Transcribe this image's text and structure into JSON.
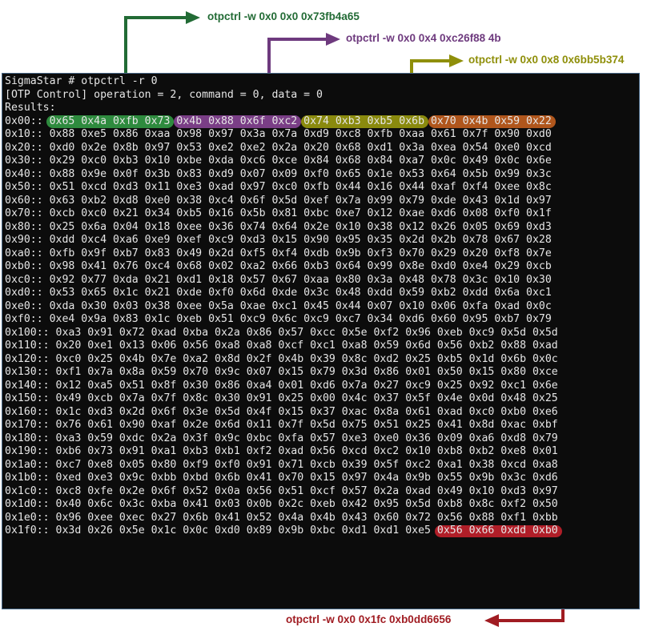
{
  "terminal": {
    "prompt_line": "SigmaStar # otpctrl -r 0",
    "info_line": "[OTP Control] operation = 2, command = 0, data = 0",
    "results_label": "Results:",
    "rows": [
      {
        "addr": "0x00::",
        "bytes": [
          "0x65",
          "0x4a",
          "0xfb",
          "0x73",
          "0x4b",
          "0x88",
          "0x6f",
          "0xc2",
          "0x74",
          "0xb3",
          "0xb5",
          "0x6b",
          "0x70",
          "0x4b",
          "0x59",
          "0x22"
        ]
      },
      {
        "addr": "0x10::",
        "bytes": [
          "0x88",
          "0xe5",
          "0x86",
          "0xaa",
          "0x98",
          "0x97",
          "0x3a",
          "0x7a",
          "0xd9",
          "0xc8",
          "0xfb",
          "0xaa",
          "0x61",
          "0x7f",
          "0x90",
          "0xd0"
        ]
      },
      {
        "addr": "0x20::",
        "bytes": [
          "0xd0",
          "0x2e",
          "0x8b",
          "0x97",
          "0x53",
          "0xe2",
          "0xe2",
          "0x2a",
          "0x20",
          "0x68",
          "0xd1",
          "0x3a",
          "0xea",
          "0x54",
          "0xe0",
          "0xcd"
        ]
      },
      {
        "addr": "0x30::",
        "bytes": [
          "0x29",
          "0xc0",
          "0xb3",
          "0x10",
          "0xbe",
          "0xda",
          "0xc6",
          "0xce",
          "0x84",
          "0x68",
          "0x84",
          "0xa7",
          "0x0c",
          "0x49",
          "0x0c",
          "0x6e"
        ]
      },
      {
        "addr": "0x40::",
        "bytes": [
          "0x88",
          "0x9e",
          "0x0f",
          "0x3b",
          "0x83",
          "0xd9",
          "0x07",
          "0x09",
          "0xf0",
          "0x65",
          "0x1e",
          "0x53",
          "0x64",
          "0x5b",
          "0x99",
          "0x3c"
        ]
      },
      {
        "addr": "0x50::",
        "bytes": [
          "0x51",
          "0xcd",
          "0xd3",
          "0x11",
          "0xe3",
          "0xad",
          "0x97",
          "0xc0",
          "0xfb",
          "0x44",
          "0x16",
          "0x44",
          "0xaf",
          "0xf4",
          "0xee",
          "0x8c"
        ]
      },
      {
        "addr": "0x60::",
        "bytes": [
          "0x63",
          "0xb2",
          "0xd8",
          "0xe0",
          "0x38",
          "0xc4",
          "0x6f",
          "0x5d",
          "0xef",
          "0x7a",
          "0x99",
          "0x79",
          "0xde",
          "0x43",
          "0x1d",
          "0x97"
        ]
      },
      {
        "addr": "0x70::",
        "bytes": [
          "0xcb",
          "0xc0",
          "0x21",
          "0x34",
          "0xb5",
          "0x16",
          "0x5b",
          "0x81",
          "0xbc",
          "0xe7",
          "0x12",
          "0xae",
          "0xd6",
          "0x08",
          "0xf0",
          "0x1f"
        ]
      },
      {
        "addr": "0x80::",
        "bytes": [
          "0x25",
          "0x6a",
          "0x04",
          "0x18",
          "0xee",
          "0x36",
          "0x74",
          "0x64",
          "0x2e",
          "0x10",
          "0x38",
          "0x12",
          "0x26",
          "0x05",
          "0x69",
          "0xd3"
        ]
      },
      {
        "addr": "0x90::",
        "bytes": [
          "0xdd",
          "0xc4",
          "0xa6",
          "0xe9",
          "0xef",
          "0xc9",
          "0xd3",
          "0x15",
          "0x90",
          "0x95",
          "0x35",
          "0x2d",
          "0x2b",
          "0x78",
          "0x67",
          "0x28"
        ]
      },
      {
        "addr": "0xa0::",
        "bytes": [
          "0xfb",
          "0x9f",
          "0xb7",
          "0x83",
          "0x49",
          "0x2d",
          "0xf5",
          "0xf4",
          "0xdb",
          "0x9b",
          "0xf3",
          "0x70",
          "0x29",
          "0x20",
          "0xf8",
          "0x7e"
        ]
      },
      {
        "addr": "0xb0::",
        "bytes": [
          "0x98",
          "0x41",
          "0x76",
          "0xc4",
          "0x68",
          "0x02",
          "0xa2",
          "0x66",
          "0xb3",
          "0x64",
          "0x99",
          "0x8e",
          "0xd0",
          "0xe4",
          "0x29",
          "0xcb"
        ]
      },
      {
        "addr": "0xc0::",
        "bytes": [
          "0x92",
          "0x77",
          "0xda",
          "0x21",
          "0xd1",
          "0x18",
          "0x57",
          "0x67",
          "0xaa",
          "0x80",
          "0x3a",
          "0x48",
          "0x78",
          "0x3c",
          "0x10",
          "0x30"
        ]
      },
      {
        "addr": "0xd0::",
        "bytes": [
          "0x53",
          "0x65",
          "0x1c",
          "0x21",
          "0xde",
          "0xf0",
          "0x6d",
          "0xde",
          "0x3c",
          "0x48",
          "0xdd",
          "0x59",
          "0xb2",
          "0xdd",
          "0x6a",
          "0xc1"
        ]
      },
      {
        "addr": "0xe0::",
        "bytes": [
          "0xda",
          "0x30",
          "0x03",
          "0x38",
          "0xee",
          "0x5a",
          "0xae",
          "0xc1",
          "0x45",
          "0x44",
          "0x07",
          "0x10",
          "0x06",
          "0xfa",
          "0xad",
          "0x0c"
        ]
      },
      {
        "addr": "0xf0::",
        "bytes": [
          "0xe4",
          "0x9a",
          "0x83",
          "0x1c",
          "0xeb",
          "0x51",
          "0xc9",
          "0x6c",
          "0xc9",
          "0xc7",
          "0x34",
          "0xd6",
          "0x60",
          "0x95",
          "0xb7",
          "0x79"
        ]
      },
      {
        "addr": "0x100::",
        "bytes": [
          "0xa3",
          "0x91",
          "0x72",
          "0xad",
          "0xba",
          "0x2a",
          "0x86",
          "0x57",
          "0xcc",
          "0x5e",
          "0xf2",
          "0x96",
          "0xeb",
          "0xc9",
          "0x5d",
          "0x5d"
        ]
      },
      {
        "addr": "0x110::",
        "bytes": [
          "0x20",
          "0xe1",
          "0x13",
          "0x06",
          "0x56",
          "0xa8",
          "0xa8",
          "0xcf",
          "0xc1",
          "0xa8",
          "0x59",
          "0x6d",
          "0x56",
          "0xb2",
          "0x88",
          "0xad"
        ]
      },
      {
        "addr": "0x120::",
        "bytes": [
          "0xc0",
          "0x25",
          "0x4b",
          "0x7e",
          "0xa2",
          "0x8d",
          "0x2f",
          "0x4b",
          "0x39",
          "0x8c",
          "0xd2",
          "0x25",
          "0xb5",
          "0x1d",
          "0x6b",
          "0x0c"
        ]
      },
      {
        "addr": "0x130::",
        "bytes": [
          "0xf1",
          "0x7a",
          "0x8a",
          "0x59",
          "0x70",
          "0x9c",
          "0x07",
          "0x15",
          "0x79",
          "0x3d",
          "0x86",
          "0x01",
          "0x50",
          "0x15",
          "0x80",
          "0xce"
        ]
      },
      {
        "addr": "0x140::",
        "bytes": [
          "0x12",
          "0xa5",
          "0x51",
          "0x8f",
          "0x30",
          "0x86",
          "0xa4",
          "0x01",
          "0xd6",
          "0x7a",
          "0x27",
          "0xc9",
          "0x25",
          "0x92",
          "0xc1",
          "0x6e"
        ]
      },
      {
        "addr": "0x150::",
        "bytes": [
          "0x49",
          "0xcb",
          "0x7a",
          "0x7f",
          "0x8c",
          "0x30",
          "0x91",
          "0x25",
          "0x00",
          "0x4c",
          "0x37",
          "0x5f",
          "0x4e",
          "0x0d",
          "0x48",
          "0x25"
        ]
      },
      {
        "addr": "0x160::",
        "bytes": [
          "0x1c",
          "0xd3",
          "0x2d",
          "0x6f",
          "0x3e",
          "0x5d",
          "0x4f",
          "0x15",
          "0x37",
          "0xac",
          "0x8a",
          "0x61",
          "0xad",
          "0xc0",
          "0xb0",
          "0xe6"
        ]
      },
      {
        "addr": "0x170::",
        "bytes": [
          "0x76",
          "0x61",
          "0x90",
          "0xaf",
          "0x2e",
          "0x6d",
          "0x11",
          "0x7f",
          "0x5d",
          "0x75",
          "0x51",
          "0x25",
          "0x41",
          "0x8d",
          "0xac",
          "0xbf"
        ]
      },
      {
        "addr": "0x180::",
        "bytes": [
          "0xa3",
          "0x59",
          "0xdc",
          "0x2a",
          "0x3f",
          "0x9c",
          "0xbc",
          "0xfa",
          "0x57",
          "0xe3",
          "0xe0",
          "0x36",
          "0x09",
          "0xa6",
          "0xd8",
          "0x79"
        ]
      },
      {
        "addr": "0x190::",
        "bytes": [
          "0xb6",
          "0x73",
          "0x91",
          "0xa1",
          "0xb3",
          "0xb1",
          "0xf2",
          "0xad",
          "0x56",
          "0xcd",
          "0xc2",
          "0x10",
          "0xb8",
          "0xb2",
          "0xe8",
          "0x01"
        ]
      },
      {
        "addr": "0x1a0::",
        "bytes": [
          "0xc7",
          "0xe8",
          "0x05",
          "0x80",
          "0xf9",
          "0xf0",
          "0x91",
          "0x71",
          "0xcb",
          "0x39",
          "0x5f",
          "0xc2",
          "0xa1",
          "0x38",
          "0xcd",
          "0xa8"
        ]
      },
      {
        "addr": "0x1b0::",
        "bytes": [
          "0xed",
          "0xe3",
          "0x9c",
          "0xbb",
          "0xbd",
          "0x6b",
          "0x41",
          "0x70",
          "0x15",
          "0x97",
          "0x4a",
          "0x9b",
          "0x55",
          "0x9b",
          "0x3c",
          "0xd6"
        ]
      },
      {
        "addr": "0x1c0::",
        "bytes": [
          "0xc8",
          "0xfe",
          "0x2e",
          "0x6f",
          "0x52",
          "0x0a",
          "0x56",
          "0x51",
          "0xcf",
          "0x57",
          "0x2a",
          "0xad",
          "0x49",
          "0x10",
          "0xd3",
          "0x97"
        ]
      },
      {
        "addr": "0x1d0::",
        "bytes": [
          "0x40",
          "0x6c",
          "0x3c",
          "0xba",
          "0x41",
          "0x03",
          "0x0b",
          "0x2c",
          "0xeb",
          "0x42",
          "0x95",
          "0x5d",
          "0xb8",
          "0x8c",
          "0xf2",
          "0x50"
        ]
      },
      {
        "addr": "0x1e0::",
        "bytes": [
          "0x96",
          "0xee",
          "0xec",
          "0x27",
          "0x6b",
          "0x41",
          "0x52",
          "0x4a",
          "0x4b",
          "0x43",
          "0x60",
          "0x72",
          "0x56",
          "0x88",
          "0xf1",
          "0xbb"
        ]
      },
      {
        "addr": "0x1f0::",
        "bytes": [
          "0x3d",
          "0x26",
          "0x5e",
          "0x1c",
          "0x0c",
          "0xd0",
          "0x89",
          "0x9b",
          "0xbc",
          "0xd1",
          "0xd1",
          "0xe5",
          "0x56",
          "0x66",
          "0xdd",
          "0xb0"
        ]
      }
    ]
  },
  "highlights": [
    {
      "row": 0,
      "start": 0,
      "count": 4,
      "color": "#2e8b3e"
    },
    {
      "row": 0,
      "start": 4,
      "count": 4,
      "color": "#7a3e86"
    },
    {
      "row": 0,
      "start": 8,
      "count": 4,
      "color": "#8a8a0e"
    },
    {
      "row": 0,
      "start": 12,
      "count": 4,
      "color": "#b0561c"
    },
    {
      "row": 31,
      "start": 12,
      "count": 4,
      "color": "#b01e28"
    }
  ],
  "annotations": [
    {
      "text": "otpctrl -w 0x0 0x0 0x73fb4a65",
      "color": "#226b35"
    },
    {
      "text": "otpctrl -w 0x0 0x4 0xc26f88 4b",
      "color": "#6e3a7e"
    },
    {
      "text": "otpctrl -w 0x0 0x8 0x6bb5b374",
      "color": "#8f8f0a"
    },
    {
      "text": "otpctrl -w 0x0 0x1fc 0xb0dd6656",
      "color": "#a01c22"
    }
  ]
}
